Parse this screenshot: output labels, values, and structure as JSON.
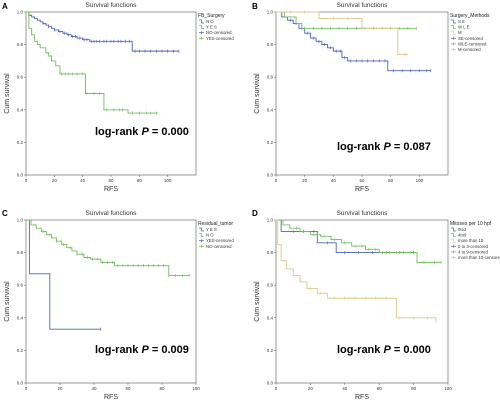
{
  "chart_data": [
    {
      "type": "line",
      "panel": "A",
      "title": "Survival functions",
      "xlabel": "RFS",
      "ylabel": "Cum survival",
      "xlim": [
        0,
        120
      ],
      "ylim": [
        0,
        1.0
      ],
      "xticks": [
        0,
        20,
        40,
        60,
        80,
        100
      ],
      "yticks": [
        0.0,
        0.2,
        0.4,
        0.6,
        0.8,
        1.0
      ],
      "grid": false,
      "legend_position": "right",
      "legend_title": "FB_Surgery",
      "legend": [
        "N O",
        "Y E S",
        "NO-censored",
        "YES-censored"
      ],
      "annotation": {
        "prefix": "log-rank ",
        "p": "P",
        "value": " = 0.000"
      },
      "series": [
        {
          "name": "N O",
          "color": "#4a63b8",
          "steps": [
            [
              0,
              1.0
            ],
            [
              2,
              0.98
            ],
            [
              4,
              0.97
            ],
            [
              6,
              0.96
            ],
            [
              8,
              0.95
            ],
            [
              10,
              0.94
            ],
            [
              12,
              0.93
            ],
            [
              14,
              0.92
            ],
            [
              16,
              0.91
            ],
            [
              18,
              0.9
            ],
            [
              20,
              0.89
            ],
            [
              23,
              0.88
            ],
            [
              26,
              0.87
            ],
            [
              29,
              0.86
            ],
            [
              32,
              0.85
            ],
            [
              36,
              0.84
            ],
            [
              40,
              0.83
            ],
            [
              45,
              0.82
            ],
            [
              75,
              0.76
            ],
            [
              108,
              0.76
            ]
          ],
          "censored": [
            12,
            16,
            20,
            24,
            27,
            30,
            33,
            35,
            38,
            41,
            43,
            46,
            48,
            50,
            52,
            55,
            57,
            60,
            62,
            65,
            67,
            70,
            73,
            77,
            80,
            84,
            88,
            92,
            96,
            100,
            104,
            108
          ]
        },
        {
          "name": "Y E S",
          "color": "#6dbf5b",
          "steps": [
            [
              0,
              1.0
            ],
            [
              2,
              0.9
            ],
            [
              4,
              0.86
            ],
            [
              6,
              0.82
            ],
            [
              8,
              0.8
            ],
            [
              10,
              0.78
            ],
            [
              14,
              0.75
            ],
            [
              16,
              0.73
            ],
            [
              18,
              0.7
            ],
            [
              21,
              0.67
            ],
            [
              24,
              0.62
            ],
            [
              42,
              0.5
            ],
            [
              55,
              0.4
            ],
            [
              72,
              0.38
            ],
            [
              93,
              0.38
            ]
          ],
          "censored": [
            25,
            28,
            30,
            33,
            36,
            40,
            43,
            48,
            52,
            57,
            62,
            66,
            68,
            75,
            80,
            85,
            88,
            92
          ]
        }
      ]
    },
    {
      "type": "line",
      "panel": "B",
      "title": "Survival functions",
      "xlabel": "RFS",
      "ylabel": "Cum survival",
      "xlim": [
        0,
        120
      ],
      "ylim": [
        0,
        1.0
      ],
      "xticks": [
        0,
        20,
        40,
        60,
        80,
        100
      ],
      "yticks": [
        0.0,
        0.2,
        0.4,
        0.6,
        0.8,
        1.0
      ],
      "grid": false,
      "legend_position": "right",
      "legend_title": "Surgery_Methods",
      "legend": [
        "S E",
        "W L E",
        "M",
        "SE-censored",
        "WLE-censored",
        "M-censored"
      ],
      "annotation": {
        "prefix": "log-rank ",
        "p": "P",
        "value": " = 0.087"
      },
      "series": [
        {
          "name": "S E",
          "color": "#4a63b8",
          "steps": [
            [
              0,
              1.0
            ],
            [
              4,
              0.97
            ],
            [
              8,
              0.95
            ],
            [
              12,
              0.93
            ],
            [
              16,
              0.9
            ],
            [
              20,
              0.87
            ],
            [
              24,
              0.84
            ],
            [
              28,
              0.82
            ],
            [
              32,
              0.8
            ],
            [
              36,
              0.78
            ],
            [
              40,
              0.76
            ],
            [
              46,
              0.72
            ],
            [
              50,
              0.7
            ],
            [
              78,
              0.64
            ],
            [
              108,
              0.64
            ]
          ],
          "censored": [
            10,
            14,
            18,
            22,
            26,
            30,
            34,
            38,
            42,
            45,
            48,
            52,
            56,
            60,
            64,
            68,
            72,
            76,
            82,
            88,
            94,
            100,
            105,
            108
          ]
        },
        {
          "name": "W L E",
          "color": "#6dbf5b",
          "steps": [
            [
              0,
              1.0
            ],
            [
              6,
              0.97
            ],
            [
              14,
              0.93
            ],
            [
              18,
              0.9
            ],
            [
              98,
              0.9
            ]
          ],
          "censored": [
            20,
            26,
            32,
            38,
            44,
            50,
            56,
            62,
            68,
            74,
            80,
            86,
            92,
            98
          ]
        },
        {
          "name": "M",
          "color": "#d9c98a",
          "steps": [
            [
              0,
              1.0
            ],
            [
              30,
              0.96
            ],
            [
              60,
              0.9
            ],
            [
              85,
              0.74
            ],
            [
              92,
              0.74
            ]
          ],
          "censored": [
            10,
            20,
            40,
            50,
            70,
            80,
            90
          ]
        }
      ]
    },
    {
      "type": "line",
      "panel": "C",
      "title": "Survival functions",
      "xlabel": "RFS",
      "ylabel": "Cum survival",
      "xlim": [
        0,
        100
      ],
      "ylim": [
        0,
        1.0
      ],
      "xticks": [
        0,
        20,
        40,
        60,
        80,
        100
      ],
      "yticks": [
        0.0,
        0.2,
        0.4,
        0.6,
        0.8,
        1.0
      ],
      "grid": false,
      "legend_position": "right",
      "legend_title": "Residual_tumor",
      "legend": [
        "Y E S",
        "N O",
        "YES-censored",
        "NO-censored"
      ],
      "annotation": {
        "prefix": "log-rank ",
        "p": "P",
        "value": " = 0.009"
      },
      "series": [
        {
          "name": "Y E S",
          "color": "#4a63b8",
          "steps": [
            [
              0,
              1.0
            ],
            [
              2,
              0.67
            ],
            [
              14,
              0.33
            ],
            [
              44,
              0.33
            ]
          ],
          "censored": [
            44
          ]
        },
        {
          "name": "N O",
          "color": "#6dbf5b",
          "steps": [
            [
              0,
              1.0
            ],
            [
              3,
              0.97
            ],
            [
              6,
              0.95
            ],
            [
              9,
              0.93
            ],
            [
              12,
              0.91
            ],
            [
              15,
              0.89
            ],
            [
              18,
              0.87
            ],
            [
              21,
              0.85
            ],
            [
              24,
              0.83
            ],
            [
              27,
              0.81
            ],
            [
              30,
              0.79
            ],
            [
              34,
              0.77
            ],
            [
              38,
              0.76
            ],
            [
              44,
              0.74
            ],
            [
              52,
              0.72
            ],
            [
              84,
              0.66
            ],
            [
              96,
              0.66
            ]
          ],
          "censored": [
            10,
            14,
            18,
            22,
            26,
            30,
            33,
            36,
            39,
            42,
            45,
            48,
            51,
            54,
            57,
            60,
            63,
            66,
            69,
            72,
            75,
            78,
            81,
            84,
            88,
            92,
            96
          ]
        }
      ]
    },
    {
      "type": "line",
      "panel": "D",
      "title": "Survival functions",
      "xlabel": "RFS",
      "ylabel": "Cum survival",
      "xlim": [
        0,
        100
      ],
      "ylim": [
        0,
        1.0
      ],
      "xticks": [
        0,
        20,
        40,
        60,
        80,
        100
      ],
      "yticks": [
        0.0,
        0.2,
        0.4,
        0.6,
        0.8,
        1.0
      ],
      "grid": false,
      "legend_position": "right",
      "legend_title": "Mitoses per 10 hpf",
      "legend": [
        "0to3",
        "4to9",
        "more than 10",
        "0 to 3-censored",
        "4 to 9-censored",
        "more than 10-censored"
      ],
      "annotation": {
        "prefix": "log-rank ",
        "p": "P",
        "value": " = 0.000"
      },
      "series": [
        {
          "name": "0to3",
          "color": "#4a63b8",
          "steps": [
            [
              0,
              1.0
            ],
            [
              3,
              0.93
            ],
            [
              24,
              0.86
            ],
            [
              35,
              0.8
            ],
            [
              80,
              0.8
            ]
          ],
          "censored": [
            10,
            16,
            22,
            30,
            40,
            48,
            56,
            64,
            72,
            80
          ]
        },
        {
          "name": "4to9",
          "color": "#6dbf5b",
          "steps": [
            [
              0,
              1.0
            ],
            [
              4,
              0.97
            ],
            [
              8,
              0.95
            ],
            [
              14,
              0.93
            ],
            [
              20,
              0.91
            ],
            [
              26,
              0.9
            ],
            [
              32,
              0.88
            ],
            [
              38,
              0.86
            ],
            [
              44,
              0.84
            ],
            [
              52,
              0.82
            ],
            [
              60,
              0.8
            ],
            [
              82,
              0.74
            ],
            [
              96,
              0.74
            ]
          ],
          "censored": [
            12,
            16,
            22,
            28,
            34,
            40,
            46,
            50,
            54,
            58,
            62,
            66,
            70,
            74,
            78,
            86,
            92,
            96
          ]
        },
        {
          "name": "more than 10",
          "color": "#d9c98a",
          "steps": [
            [
              0,
              1.0
            ],
            [
              1,
              0.85
            ],
            [
              3,
              0.75
            ],
            [
              6,
              0.7
            ],
            [
              10,
              0.66
            ],
            [
              14,
              0.62
            ],
            [
              18,
              0.58
            ],
            [
              24,
              0.55
            ],
            [
              30,
              0.52
            ],
            [
              70,
              0.4
            ],
            [
              93,
              0.38
            ]
          ],
          "censored": [
            20,
            26,
            34,
            40,
            46,
            52,
            58,
            64,
            72,
            80,
            88,
            93
          ]
        }
      ]
    }
  ]
}
